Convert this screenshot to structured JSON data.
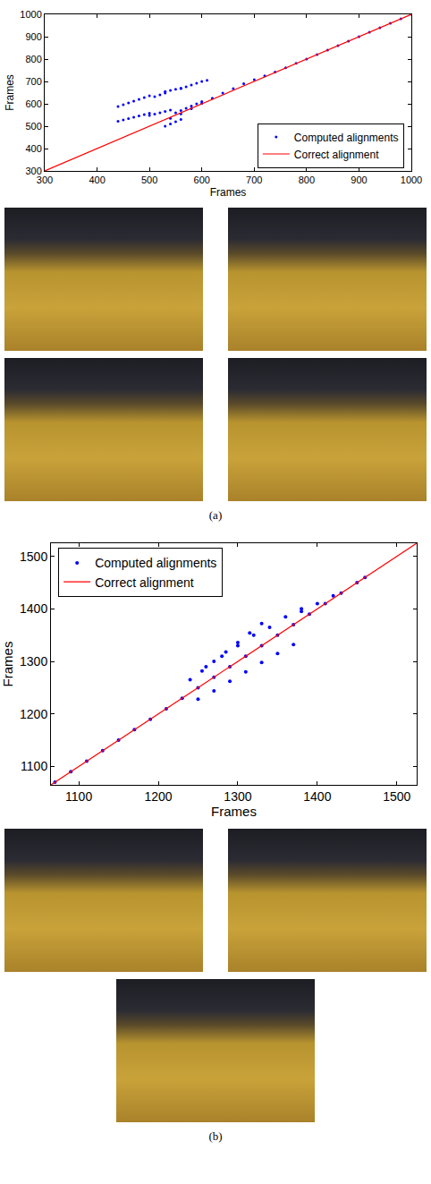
{
  "chart_data": [
    {
      "type": "scatter",
      "caption": "(a)",
      "x_label": "Frames",
      "y_label": "Frames",
      "xlim": [
        300,
        1000
      ],
      "ylim": [
        300,
        1000
      ],
      "xticks": [
        300,
        400,
        500,
        600,
        700,
        800,
        900,
        1000
      ],
      "yticks": [
        300,
        400,
        500,
        600,
        700,
        800,
        900,
        1000
      ],
      "grid": false,
      "legend": "lower right",
      "series": [
        {
          "name": "Computed alignments",
          "type": "scatter",
          "marker": "dot",
          "color": "#0000ff",
          "x": [
            540,
            560,
            580,
            600,
            620,
            640,
            660,
            680,
            700,
            720,
            740,
            760,
            780,
            800,
            820,
            840,
            860,
            880,
            900,
            920,
            940,
            960,
            980,
            1000,
            440,
            450,
            460,
            470,
            480,
            490,
            500,
            510,
            520,
            530,
            530,
            540,
            550,
            560,
            560,
            570,
            580,
            590,
            600,
            610,
            440,
            450,
            460,
            470,
            480,
            490,
            500,
            500,
            510,
            520,
            530,
            540,
            530,
            540,
            550,
            560,
            550,
            560,
            570,
            580,
            590,
            600
          ],
          "values": [
            535,
            555,
            578,
            602,
            625,
            648,
            668,
            690,
            708,
            725,
            742,
            761,
            781,
            800,
            820,
            840,
            860,
            880,
            900,
            920,
            940,
            960,
            980,
            1000,
            588,
            596,
            604,
            612,
            620,
            628,
            636,
            632,
            640,
            648,
            655,
            660,
            665,
            670,
            668,
            676,
            684,
            692,
            700,
            705,
            522,
            528,
            534,
            540,
            546,
            552,
            558,
            548,
            554,
            560,
            566,
            572,
            500,
            510,
            520,
            530,
            560,
            570,
            580,
            590,
            600,
            610
          ]
        },
        {
          "name": "Correct alignment",
          "type": "line",
          "color": "#ff0000",
          "x": [
            300,
            1000
          ],
          "values": [
            300,
            1000
          ]
        }
      ]
    },
    {
      "type": "scatter",
      "caption": "(b)",
      "x_label": "Frames",
      "y_label": "Frames",
      "xlim": [
        1065,
        1525
      ],
      "ylim": [
        1065,
        1525
      ],
      "xticks": [
        1100,
        1200,
        1300,
        1400,
        1500
      ],
      "yticks": [
        1100,
        1200,
        1300,
        1400,
        1500
      ],
      "grid": false,
      "legend": "upper left",
      "series": [
        {
          "name": "Computed alignments",
          "type": "scatter",
          "marker": "dot",
          "color": "#0000ff",
          "x": [
            1070,
            1090,
            1110,
            1130,
            1150,
            1170,
            1190,
            1210,
            1230,
            1250,
            1270,
            1290,
            1310,
            1330,
            1350,
            1370,
            1390,
            1410,
            1430,
            1450,
            1460,
            1240,
            1255,
            1270,
            1285,
            1300,
            1315,
            1330,
            1250,
            1270,
            1290,
            1310,
            1330,
            1350,
            1370,
            1260,
            1280,
            1300,
            1320,
            1340,
            1360,
            1380,
            1380,
            1400,
            1420
          ],
          "values": [
            1070,
            1090,
            1110,
            1130,
            1150,
            1170,
            1190,
            1210,
            1230,
            1250,
            1270,
            1290,
            1310,
            1330,
            1350,
            1370,
            1390,
            1410,
            1430,
            1450,
            1460,
            1265,
            1282,
            1300,
            1318,
            1336,
            1354,
            1372,
            1228,
            1244,
            1262,
            1280,
            1298,
            1315,
            1332,
            1290,
            1310,
            1330,
            1350,
            1365,
            1385,
            1395,
            1400,
            1410,
            1425
          ]
        },
        {
          "name": "Correct alignment",
          "type": "line",
          "color": "#ff0000",
          "x": [
            1065,
            1525
          ],
          "values": [
            1065,
            1525
          ]
        }
      ]
    }
  ]
}
